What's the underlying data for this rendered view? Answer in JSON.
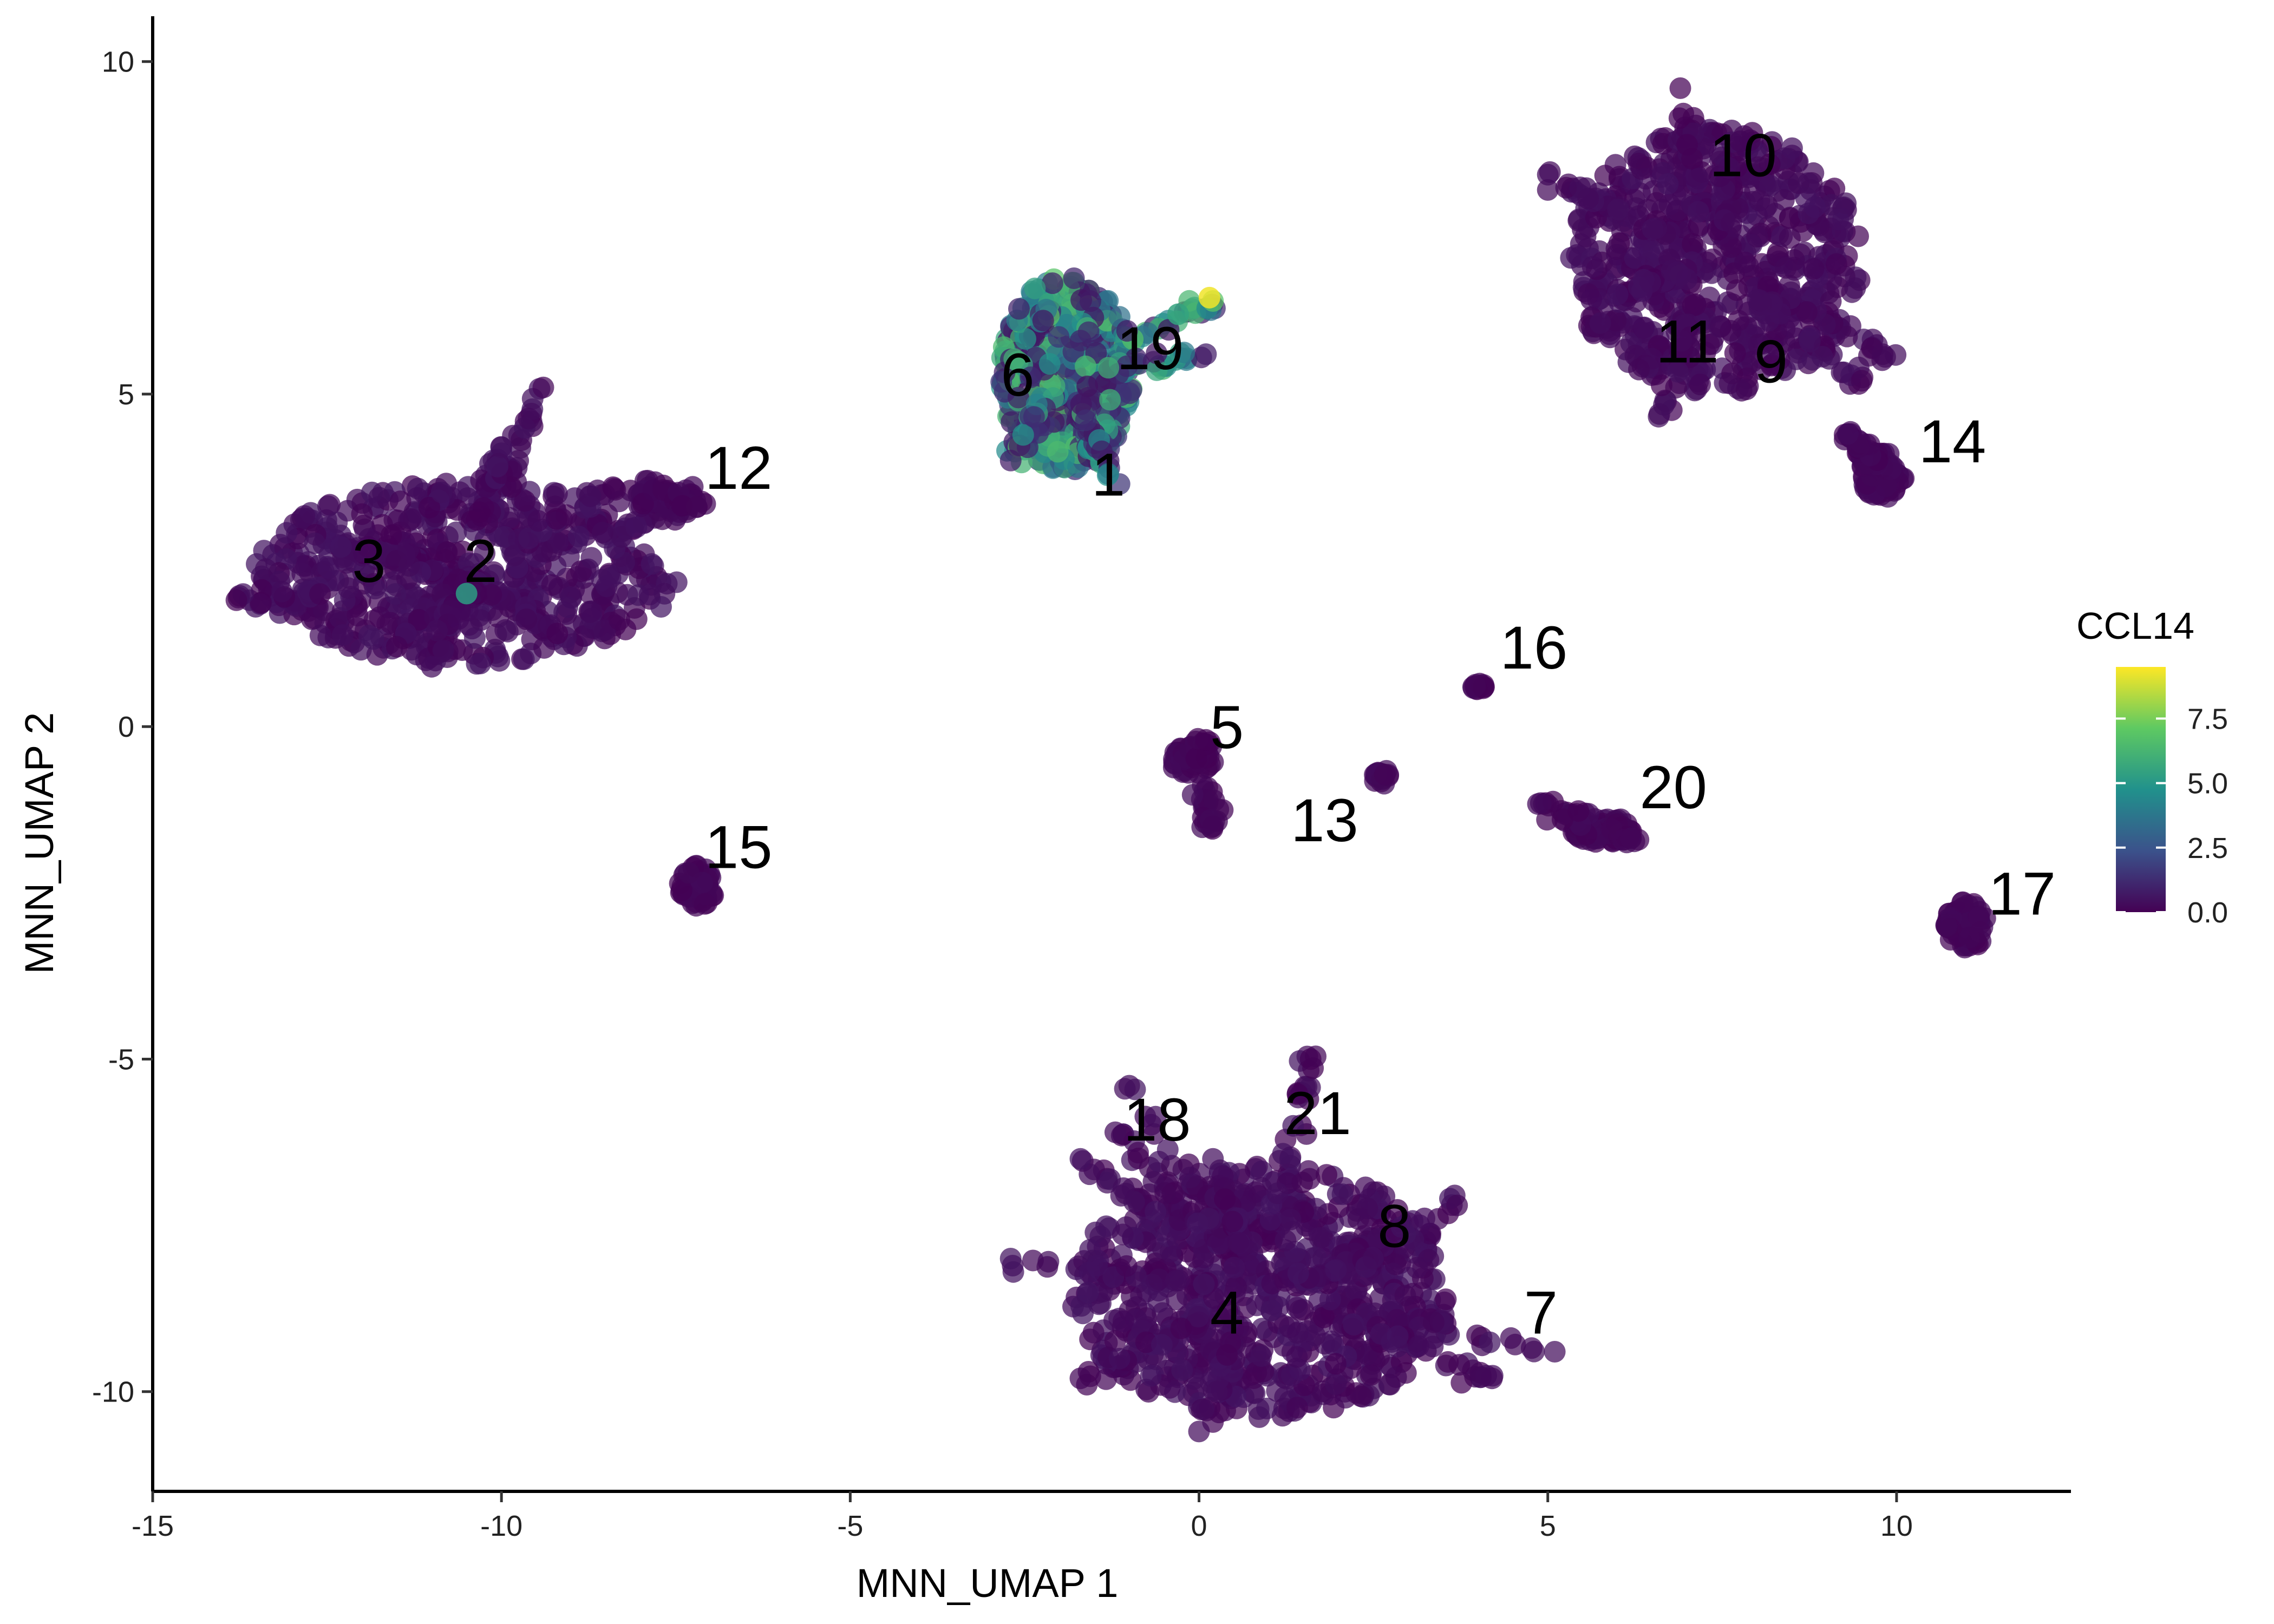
{
  "chart_data": {
    "type": "scatter",
    "xlabel": "MNN_UMAP 1",
    "ylabel": "MNN_UMAP 2",
    "xlim": [
      -15,
      12.5
    ],
    "ylim": [
      -11.5,
      10.6
    ],
    "x_ticks": [
      -15,
      -10,
      -5,
      0,
      5,
      10
    ],
    "y_ticks": [
      -10,
      -5,
      0,
      5,
      10
    ],
    "x_tick_labels": [
      "-15",
      "-10",
      "-5",
      "0",
      "5",
      "10"
    ],
    "y_tick_labels": [
      "-10",
      "-5",
      "0",
      "5",
      "10"
    ],
    "grid": false,
    "legend": {
      "title": "CCL14",
      "placement": "right",
      "type": "colorbar",
      "range": [
        0,
        9.5
      ],
      "ticks": [
        0,
        2.5,
        5,
        7.5
      ],
      "tick_labels": [
        "0.0",
        "2.5",
        "5.0",
        "7.5"
      ],
      "colormap": "viridis",
      "colors": [
        "#440154",
        "#3b528b",
        "#21918c",
        "#5ec962",
        "#fde725"
      ]
    },
    "point_color_low": "#440154",
    "point_color_high": "#fde725",
    "cluster_labels": [
      {
        "label": "1",
        "x": -1.3,
        "y": 3.8
      },
      {
        "label": "2",
        "x": -10.3,
        "y": 2.5
      },
      {
        "label": "3",
        "x": -11.9,
        "y": 2.5
      },
      {
        "label": "4",
        "x": 0.4,
        "y": -8.8
      },
      {
        "label": "5",
        "x": 0.4,
        "y": 0
      },
      {
        "label": "6",
        "x": -2.6,
        "y": 5.3
      },
      {
        "label": "7",
        "x": 4.9,
        "y": -8.8
      },
      {
        "label": "8",
        "x": 2.8,
        "y": -7.5
      },
      {
        "label": "9",
        "x": 8.2,
        "y": 5.5
      },
      {
        "label": "10",
        "x": 7.8,
        "y": 8.6
      },
      {
        "label": "11",
        "x": 7.0,
        "y": 5.8
      },
      {
        "label": "12",
        "x": -6.6,
        "y": 3.9
      },
      {
        "label": "13",
        "x": 1.8,
        "y": -1.4
      },
      {
        "label": "14",
        "x": 10.8,
        "y": 4.3
      },
      {
        "label": "15",
        "x": -6.6,
        "y": -1.8
      },
      {
        "label": "16",
        "x": 4.8,
        "y": 1.2
      },
      {
        "label": "17",
        "x": 11.8,
        "y": -2.5
      },
      {
        "label": "18",
        "x": -0.6,
        "y": -5.9
      },
      {
        "label": "19",
        "x": -0.7,
        "y": 5.7
      },
      {
        "label": "20",
        "x": 6.8,
        "y": -0.9
      },
      {
        "label": "21",
        "x": 1.7,
        "y": -5.8
      }
    ],
    "clusters": [
      {
        "id": "2-3",
        "x": -10.5,
        "y": 2.3,
        "rx": 2.9,
        "ry": 1.3,
        "n": 520,
        "expr": [
          0,
          0.6
        ],
        "pts": [
          [
            -13.8,
            1.9
          ],
          [
            -11.5,
            1.2
          ],
          [
            -10.4,
            2.0
          ],
          [
            -9.4,
            5.1
          ],
          [
            -7.2,
            3.3
          ],
          [
            -8.4,
            3.6
          ],
          [
            -9.2,
            1.4
          ],
          [
            -11.0,
            0.9
          ],
          [
            -12.3,
            2.7
          ],
          [
            -10.0,
            4.2
          ]
        ]
      },
      {
        "id": "12",
        "x": -7.8,
        "y": 3.5,
        "rx": 0.6,
        "ry": 0.2,
        "n": 40,
        "expr": [
          0,
          0.3
        ],
        "pts": [
          [
            -7.2,
            3.3
          ]
        ]
      },
      {
        "id": "15",
        "x": -7.2,
        "y": -2.4,
        "rx": 0.25,
        "ry": 0.3,
        "n": 50,
        "expr": [
          0,
          0.3
        ],
        "pts": []
      },
      {
        "id": "6-19-1",
        "x": -1.9,
        "y": 5.3,
        "rx": 0.9,
        "ry": 1.4,
        "n": 560,
        "expr": [
          0.5,
          7.0
        ],
        "pts": [
          [
            0.2,
            6.4
          ],
          [
            0.1,
            5.6
          ],
          [
            -1.3,
            3.8
          ],
          [
            -2.7,
            4.0
          ]
        ]
      },
      {
        "id": "5",
        "x": -0.1,
        "y": -0.5,
        "rx": 0.3,
        "ry": 0.2,
        "n": 60,
        "expr": [
          0,
          0.3
        ],
        "pts": [
          [
            0.2,
            -1.5
          ],
          [
            0.1,
            -0.2
          ]
        ]
      },
      {
        "id": "13",
        "x": 2.6,
        "y": -0.75,
        "rx": 0.12,
        "ry": 0.12,
        "n": 18,
        "expr": [
          0,
          0.3
        ],
        "pts": []
      },
      {
        "id": "16",
        "x": 4.0,
        "y": 0.6,
        "rx": 0.1,
        "ry": 0.08,
        "n": 12,
        "expr": [
          0,
          0.3
        ],
        "pts": []
      },
      {
        "id": "20",
        "x": 5.8,
        "y": -1.55,
        "rx": 0.45,
        "ry": 0.18,
        "n": 70,
        "expr": [
          0,
          0.3
        ],
        "pts": [
          [
            4.9,
            -1.15
          ],
          [
            6.3,
            -1.7
          ]
        ]
      },
      {
        "id": "9-10-11",
        "x": 7.4,
        "y": 7.0,
        "rx": 2.0,
        "ry": 1.9,
        "n": 620,
        "expr": [
          0,
          0.5
        ],
        "pts": [
          [
            5.0,
            8.3
          ],
          [
            6.9,
            9.6
          ],
          [
            9.8,
            5.6
          ],
          [
            6.6,
            4.7
          ],
          [
            7.6,
            8.4
          ],
          [
            6.0,
            6.5
          ],
          [
            9.5,
            5.2
          ]
        ]
      },
      {
        "id": "14",
        "x": 9.8,
        "y": 3.8,
        "rx": 0.3,
        "ry": 0.35,
        "n": 70,
        "expr": [
          0,
          0.3
        ],
        "pts": [
          [
            9.3,
            4.4
          ]
        ]
      },
      {
        "id": "17",
        "x": 11.0,
        "y": -3.0,
        "rx": 0.28,
        "ry": 0.35,
        "n": 70,
        "expr": [
          0,
          0.3
        ],
        "pts": []
      },
      {
        "id": "4-7-8-18-21",
        "x": 0.9,
        "y": -8.5,
        "rx": 2.6,
        "ry": 1.8,
        "n": 720,
        "expr": [
          0,
          0.6
        ],
        "pts": [
          [
            -1.7,
            -6.5
          ],
          [
            1.6,
            -5.0
          ],
          [
            3.7,
            -7.2
          ],
          [
            5.1,
            -9.4
          ],
          [
            4.2,
            -9.8
          ],
          [
            0.0,
            -10.6
          ],
          [
            -1.7,
            -9.8
          ],
          [
            -2.7,
            -8.0
          ],
          [
            -1.2,
            -6.1
          ],
          [
            -1.0,
            -5.4
          ],
          [
            0.2,
            -6.5
          ],
          [
            2.5,
            -8.0
          ]
        ]
      }
    ]
  }
}
